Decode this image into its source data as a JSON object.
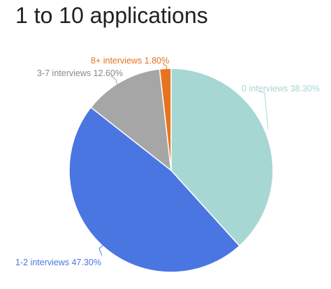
{
  "chart_data": {
    "type": "pie",
    "title": "1 to 10 applications",
    "slices": [
      {
        "label": "0 interviews 38.30%",
        "value": 38.3,
        "color": "#a6d7d3"
      },
      {
        "label": "1-2 interviews 47.30%",
        "value": 47.3,
        "color": "#4a76e2"
      },
      {
        "label": "3-7 interviews 12.60%",
        "value": 12.6,
        "color": "#a6a6a6"
      },
      {
        "label": "8+ interviews 1.80%",
        "value": 1.8,
        "color": "#e8731f"
      }
    ],
    "start": "12 o'clock",
    "direction": "clockwise",
    "legend": "none"
  }
}
